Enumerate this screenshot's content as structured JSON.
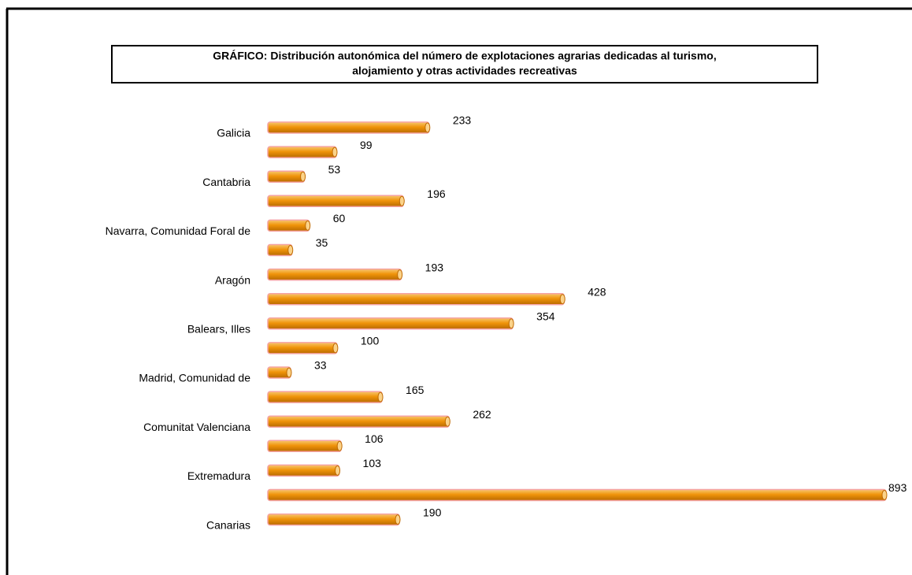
{
  "chart_data": {
    "type": "bar",
    "orientation": "horizontal",
    "title": [
      "GRÁFICO: Distribución autonómica del número de explotaciones agrarias dedicadas al turismo,",
      "alojamiento y otras actividades  recreativas"
    ],
    "categories": [
      "Galicia",
      null,
      "Cantabria",
      null,
      "Navarra, Comunidad Foral de",
      null,
      "Aragón",
      null,
      "Balears, Illes",
      null,
      "Madrid, Comunidad de",
      null,
      "Comunitat Valenciana",
      null,
      "Extremadura",
      null,
      "Canarias"
    ],
    "values": [
      233,
      99,
      53,
      196,
      60,
      35,
      193,
      428,
      354,
      100,
      33,
      165,
      262,
      106,
      103,
      893,
      190
    ],
    "color": "#f0940a"
  }
}
